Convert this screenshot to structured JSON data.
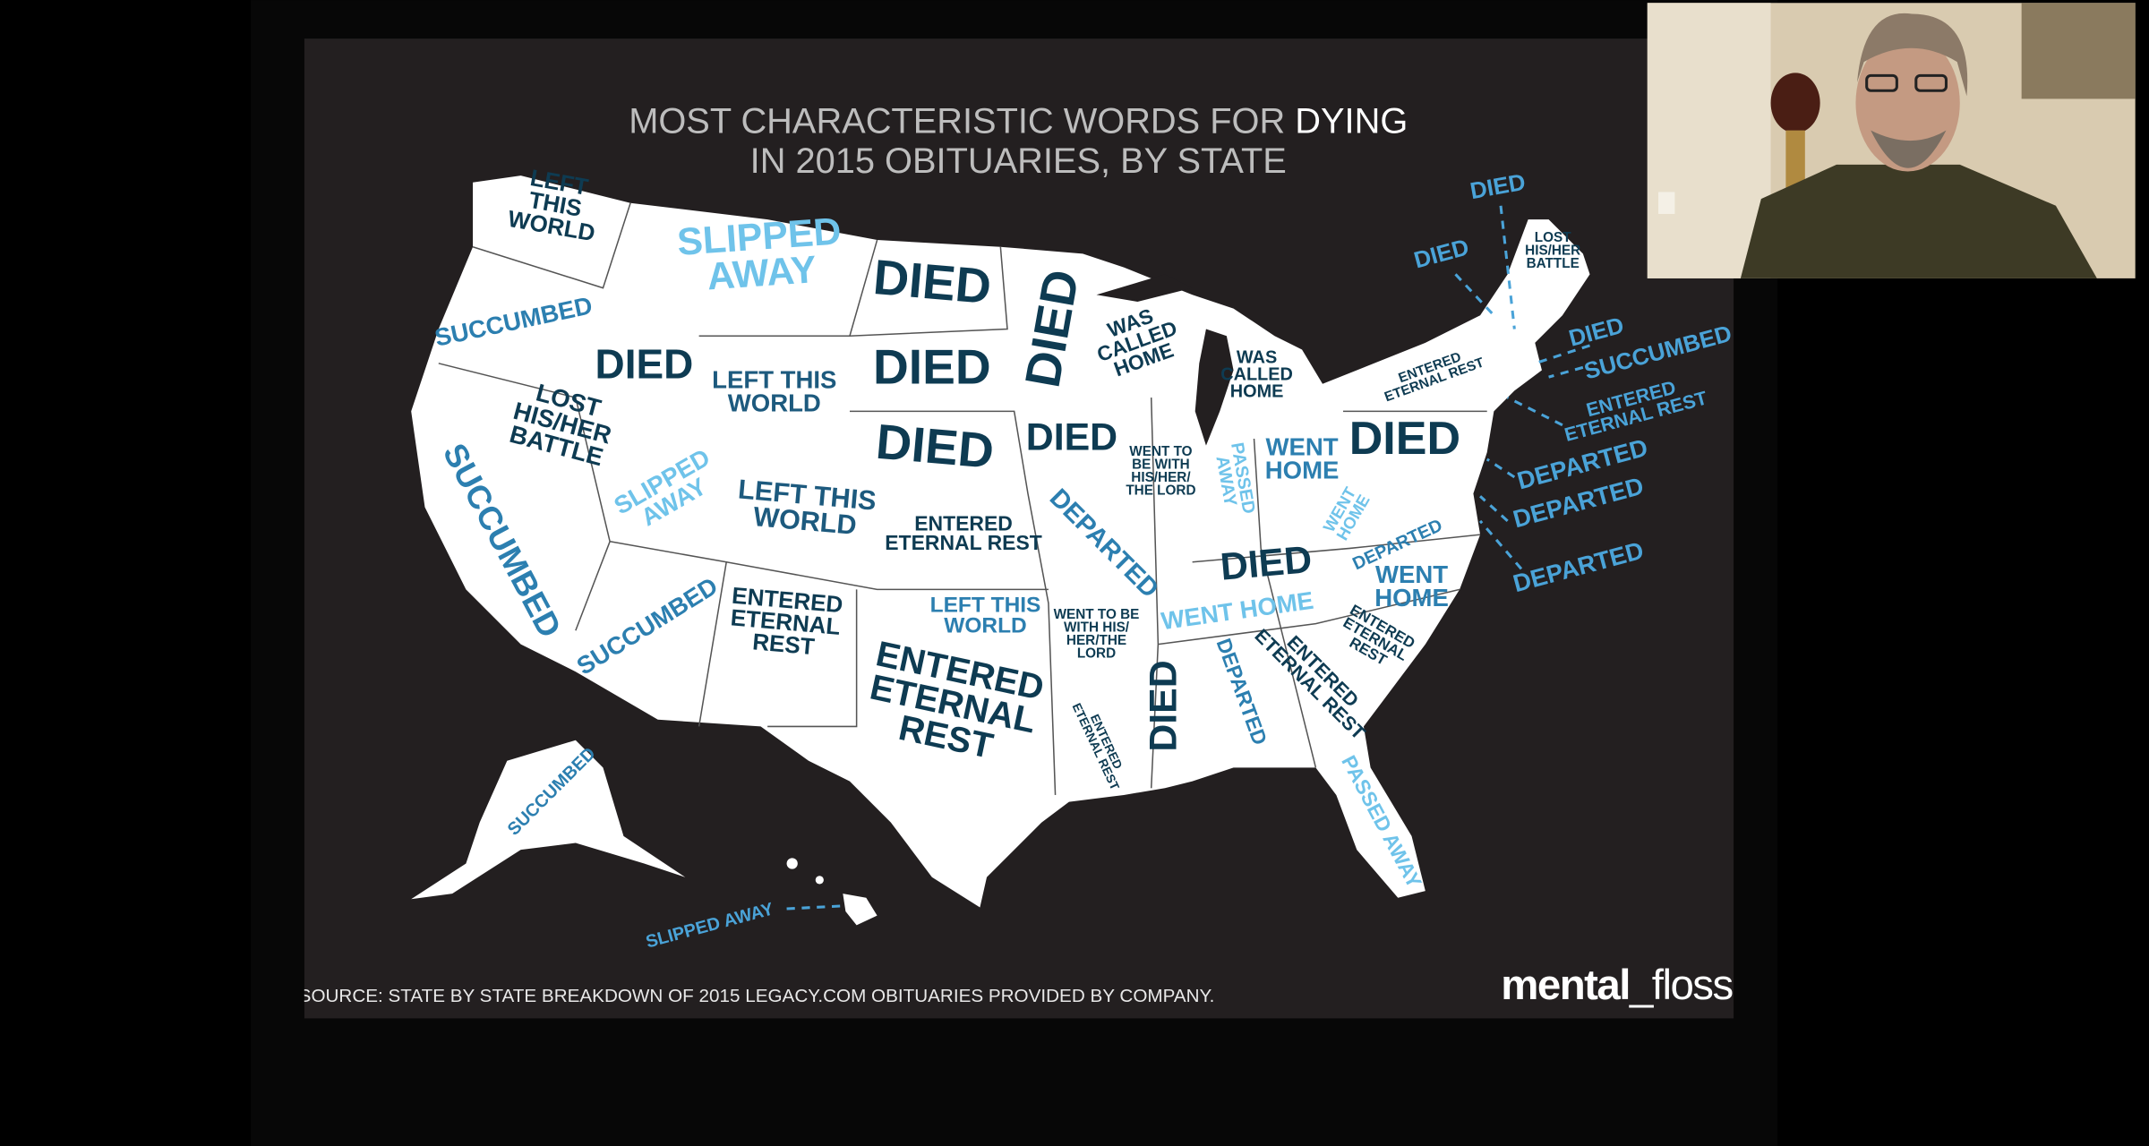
{
  "slide": {
    "title": {
      "line1": "MOST CHARACTERISTIC WORDS FOR ",
      "highlight": "DYING",
      "line2": "IN 2015 OBITUARIES, BY STATE"
    },
    "states": [
      {
        "lines": [
          "LEFT",
          "THIS",
          "WORLD"
        ],
        "color": "#0e3b52"
      },
      {
        "lines": [
          "SUCCUMBED"
        ],
        "color": "#2c7fb0"
      },
      {
        "lines": [
          "SLIPPED",
          "AWAY"
        ],
        "color": "#6fc3ea"
      },
      {
        "lines": [
          "DIED"
        ],
        "color": "#0e3b52"
      },
      {
        "lines": [
          "DIED"
        ],
        "color": "#0e3b52"
      },
      {
        "lines": [
          "DIED"
        ],
        "color": "#0e3b52"
      },
      {
        "lines": [
          "DIED"
        ],
        "color": "#0e3b52"
      },
      {
        "lines": [
          "DIED"
        ],
        "color": "#0e3b52"
      },
      {
        "lines": [
          "LEFT THIS",
          "WORLD"
        ],
        "color": "#1d5a7e"
      },
      {
        "lines": [
          "LOST",
          "HIS/HER",
          "BATTLE"
        ],
        "color": "#0e3b52"
      },
      {
        "lines": [
          "SUCCUMBED"
        ],
        "color": "#2c7fb0"
      },
      {
        "lines": [
          "SLIPPED",
          "AWAY"
        ],
        "color": "#6fc3ea"
      },
      {
        "lines": [
          "LEFT THIS",
          "WORLD"
        ],
        "color": "#1d5a7e"
      },
      {
        "lines": [
          "ENTERED",
          "ETERNAL REST"
        ],
        "color": "#0e3b52"
      },
      {
        "lines": [
          "DIED"
        ],
        "color": "#0e3b52"
      },
      {
        "lines": [
          "WAS",
          "CALLED",
          "HOME"
        ],
        "color": "#0e3b52"
      },
      {
        "lines": [
          "WAS",
          "CALLED",
          "HOME"
        ],
        "color": "#0e3b52"
      },
      {
        "lines": [
          "WENT TO",
          "BE WITH",
          "HIS/HER/",
          "THE LORD"
        ],
        "color": "#0e3b52"
      },
      {
        "lines": [
          "PASSED",
          "AWAY"
        ],
        "color": "#6fc3ea"
      },
      {
        "lines": [
          "WENT",
          "HOME"
        ],
        "color": "#2c7fb0"
      },
      {
        "lines": [
          "DIED"
        ],
        "color": "#0e3b52"
      },
      {
        "lines": [
          "ENTERED",
          "ETERNAL REST"
        ],
        "color": "#0e3b52"
      },
      {
        "lines": [
          "LOST",
          "HIS/HER",
          "BATTLE"
        ],
        "color": "#0e3b52"
      },
      {
        "lines": [
          "DIED"
        ],
        "color": "#4aa3d8"
      },
      {
        "lines": [
          "DIED"
        ],
        "color": "#4aa3d8"
      },
      {
        "lines": [
          "DIED"
        ],
        "color": "#4aa3d8"
      },
      {
        "lines": [
          "SUCCUMBED"
        ],
        "color": "#4aa3d8"
      },
      {
        "lines": [
          "ENTERED",
          "ETERNAL REST"
        ],
        "color": "#4aa3d8"
      },
      {
        "lines": [
          "DEPARTED"
        ],
        "color": "#4aa3d8"
      },
      {
        "lines": [
          "DEPARTED"
        ],
        "color": "#4aa3d8"
      },
      {
        "lines": [
          "DEPARTED"
        ],
        "color": "#4aa3d8"
      },
      {
        "lines": [
          "WENT",
          "HOME"
        ],
        "color": "#6fc3ea"
      },
      {
        "lines": [
          "DEPARTED"
        ],
        "color": "#2c7fb0"
      },
      {
        "lines": [
          "DIED"
        ],
        "color": "#0e3b52"
      },
      {
        "lines": [
          "DEPARTED"
        ],
        "color": "#2c7fb0"
      },
      {
        "lines": [
          "SUCCUMBED"
        ],
        "color": "#2c7fb0"
      },
      {
        "lines": [
          "ENTERED",
          "ETERNAL",
          "REST"
        ],
        "color": "#0e3b52"
      },
      {
        "lines": [
          "LEFT THIS",
          "WORLD"
        ],
        "color": "#2c7fb0"
      },
      {
        "lines": [
          "WENT HOME"
        ],
        "color": "#6fc3ea"
      },
      {
        "lines": [
          "WENT",
          "HOME"
        ],
        "color": "#2c7fb0"
      },
      {
        "lines": [
          "WENT TO BE",
          "WITH HIS/",
          "HER/THE",
          "LORD"
        ],
        "color": "#0e3b52"
      },
      {
        "lines": [
          "ENTERED",
          "ETERNAL",
          "REST"
        ],
        "color": "#0e3b52"
      },
      {
        "lines": [
          "ENTERED",
          "ETERNAL REST"
        ],
        "color": "#0e3b52"
      },
      {
        "lines": [
          "DIED"
        ],
        "color": "#0e3b52"
      },
      {
        "lines": [
          "DEPARTED"
        ],
        "color": "#2c7fb0"
      },
      {
        "lines": [
          "ENTERED",
          "ETERNAL REST"
        ],
        "color": "#0e3b52"
      },
      {
        "lines": [
          "ENTERED",
          "ETERNAL",
          "REST"
        ],
        "color": "#0e3b52"
      },
      {
        "lines": [
          "PASSED AWAY"
        ],
        "color": "#6fc3ea"
      },
      {
        "lines": [
          "SUCCUMBED"
        ],
        "color": "#2c7fb0"
      },
      {
        "lines": [
          "SLIPPED AWAY"
        ],
        "color": "#4aa3d8"
      }
    ],
    "source": "SOURCE: STATE BY STATE BREAKDOWN OF 2015 LEGACY.COM OBITUARIES PROVIDED BY COMPANY.",
    "logo": {
      "bold": "mental",
      "light": "_floss"
    }
  }
}
